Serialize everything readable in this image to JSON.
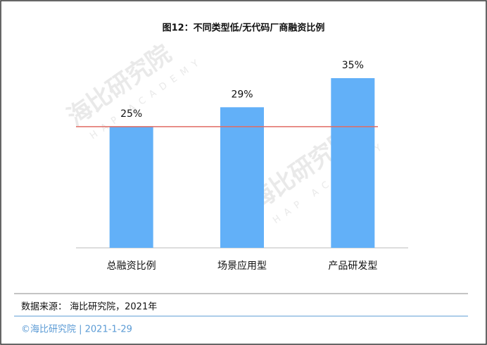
{
  "chart_data": {
    "type": "bar",
    "title": "图12：不同类型低/无代码厂商融资比例",
    "categories": [
      "总融资比例",
      "场景应用型",
      "产品研发型"
    ],
    "values": [
      25,
      29,
      35
    ],
    "value_labels": [
      "25%",
      "29%",
      "35%"
    ],
    "color": "#62b0f8",
    "reference_line": {
      "value": 25,
      "color": "#e06b63"
    },
    "watermark": {
      "name": "海比研究院",
      "subtitle": "HAP ACADEMY"
    },
    "source": "数据来源： 海比研究院，2021年",
    "footer": "©海比研究院 | 2021-1-29"
  }
}
